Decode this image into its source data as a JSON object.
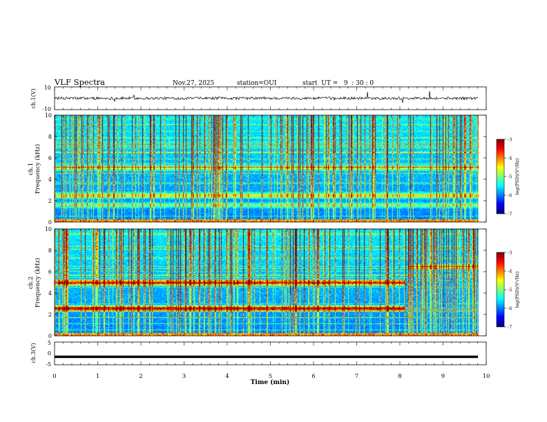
{
  "header": {
    "title": "VLF Spectra",
    "date": "Nov.27, 2025",
    "station": "station=OUI",
    "start": "start  UT =   9  : 30 : 0"
  },
  "chart_data": [
    {
      "type": "line",
      "name": "ch1-waveform",
      "ylabel": "ch.1(V)",
      "ylim": [
        -10,
        10
      ],
      "yticks": [
        "10",
        "-10"
      ],
      "baseline": 0,
      "noise_amplitude": 1.2
    },
    {
      "type": "heatmap",
      "name": "ch1-spectrogram",
      "channel_label": "ch.1",
      "ylabel": "Frequency (kHz)",
      "ylim": [
        0,
        10
      ],
      "yticks": [
        "0",
        "2",
        "4",
        "6",
        "8",
        "10"
      ],
      "xlim": [
        0,
        10
      ],
      "colorbar": {
        "label": "log(PSD)(V²/Hz)",
        "range": [
          -7,
          -3
        ],
        "ticks": [
          "-3",
          "-4",
          "-5",
          "-6",
          "-7"
        ]
      },
      "bands_khz": [
        {
          "center": 5.1,
          "strength": 0.35
        },
        {
          "center": 2.5,
          "strength": 0.45
        },
        {
          "center": 1.6,
          "strength": 0.3
        }
      ],
      "noise_end_min": 10
    },
    {
      "type": "heatmap",
      "name": "ch2-spectrogram",
      "channel_label": "ch.2",
      "ylabel": "Frequency (kHz)",
      "ylim": [
        0,
        10
      ],
      "yticks": [
        "0",
        "2",
        "4",
        "6",
        "8",
        "10"
      ],
      "xlim": [
        0,
        10
      ],
      "colorbar": {
        "label": "log(PSD)(V²/Hz)",
        "range": [
          -7,
          -3
        ],
        "ticks": [
          "-3",
          "-4",
          "-5",
          "-6",
          "-7"
        ]
      },
      "bands_khz": [
        {
          "center": 5.0,
          "strength": 0.75,
          "end_min": 8.1
        },
        {
          "center": 2.6,
          "strength": 0.8,
          "end_min": 8.1
        },
        {
          "center": 6.5,
          "strength": 0.4,
          "start_min": 8.2
        }
      ],
      "noise_end_min": 10
    },
    {
      "type": "line",
      "name": "ch3-waveform",
      "ylabel": "ch.3(V)",
      "ylim": [
        -5,
        5
      ],
      "yticks": [
        "5",
        "0",
        "-5"
      ],
      "baseline": -1.5,
      "noise_amplitude": 0.0
    }
  ],
  "xaxis": {
    "label": "Time (min)",
    "range": [
      0,
      10
    ],
    "ticks": [
      "0",
      "1",
      "2",
      "3",
      "4",
      "5",
      "6",
      "7",
      "8",
      "9",
      "10"
    ]
  }
}
